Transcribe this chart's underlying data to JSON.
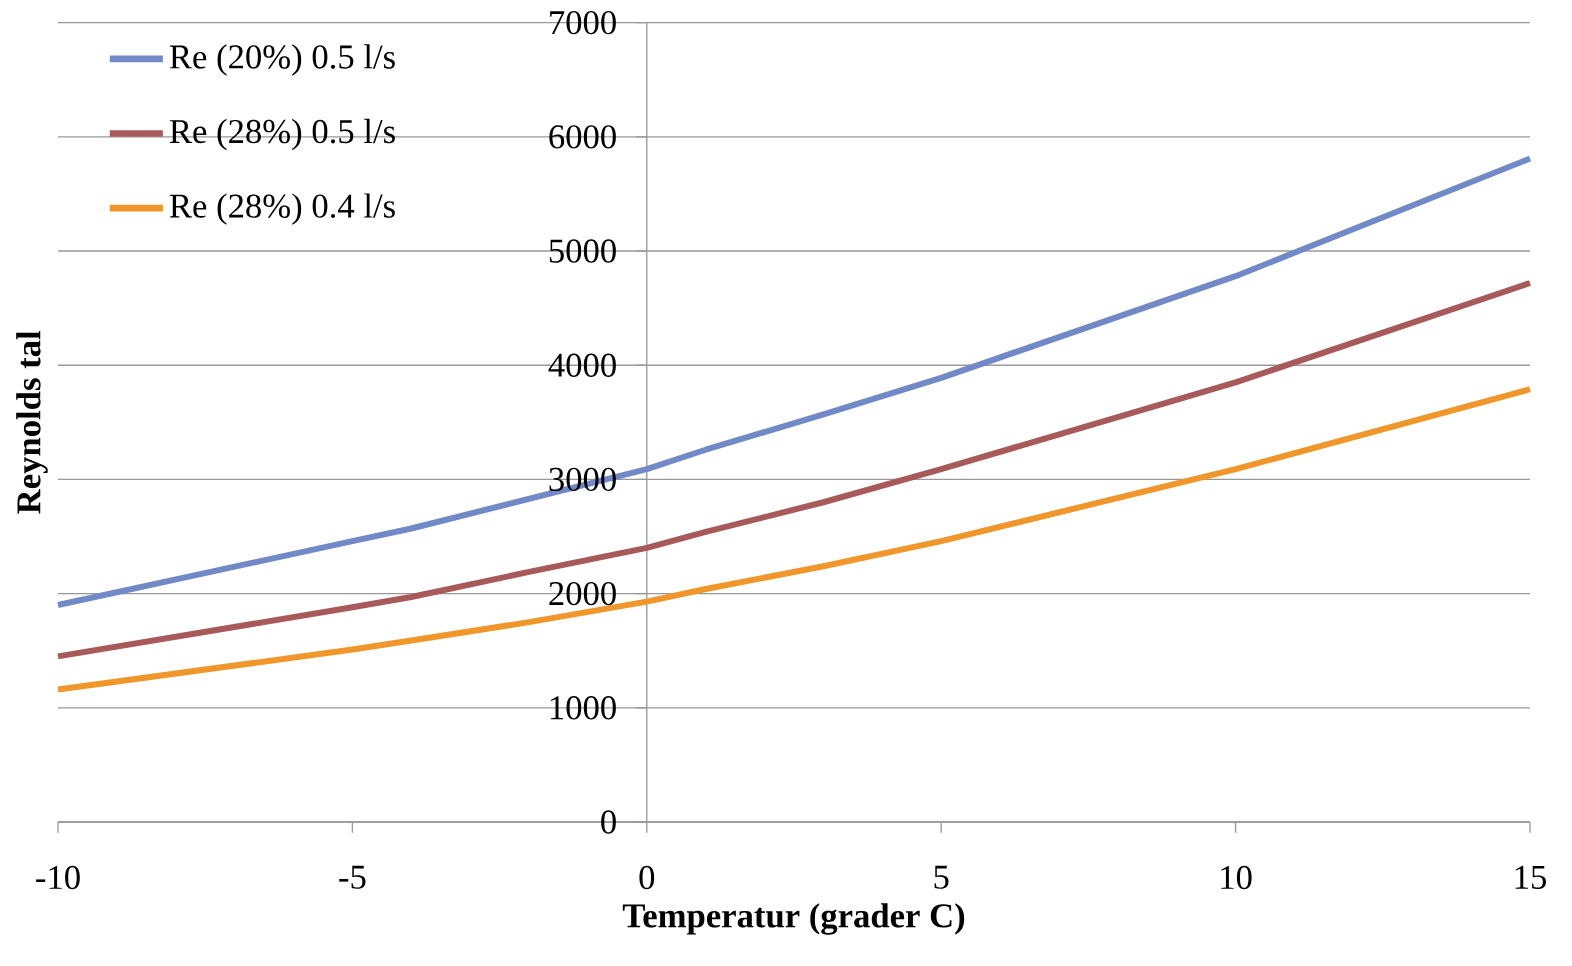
{
  "chart_data": {
    "type": "line",
    "xlabel": "Temperatur (grader C)",
    "ylabel": "Reynolds tal",
    "xlim": [
      -10,
      15
    ],
    "ylim": [
      0,
      7000
    ],
    "xticks": [
      -10,
      -5,
      0,
      5,
      10,
      15
    ],
    "yticks": [
      0,
      1000,
      2000,
      3000,
      4000,
      5000,
      6000,
      7000
    ],
    "grid": "y",
    "legend": "top left",
    "marker": "none",
    "x": [
      -10,
      -5,
      -4,
      -2,
      0,
      1,
      3,
      5,
      10,
      15
    ],
    "series": [
      {
        "name": "Re (20%) 0.5 l/s",
        "color": "#7189c6",
        "values": [
          1900,
          2460,
          2570,
          2830,
          3090,
          3260,
          3570,
          3890,
          4780,
          5810
        ]
      },
      {
        "name": "Re (28%) 0.5 l/s",
        "color": "#a85a5a",
        "values": [
          1450,
          1880,
          1970,
          2190,
          2400,
          2540,
          2800,
          3090,
          3850,
          4720
        ]
      },
      {
        "name": "Re (28%) 0.4 l/s",
        "color": "#f0962a",
        "values": [
          1160,
          1510,
          1590,
          1750,
          1930,
          2040,
          2240,
          2460,
          3090,
          3790
        ]
      }
    ]
  }
}
